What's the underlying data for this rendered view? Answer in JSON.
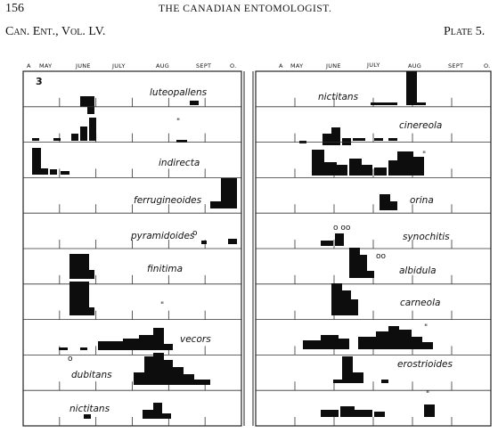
{
  "header": {
    "page_number": "156",
    "journal_title": "THE CANADIAN ENTOMOLOGIST.",
    "citation": "Can. Ent., Vol. LV.",
    "plate": "Plate 5."
  },
  "plate": {
    "figure_number": "3",
    "left_months": [
      "A",
      "MAY",
      "JUNE",
      "JULY",
      "AUG",
      "SEPT",
      "O."
    ],
    "right_months": [
      "A",
      "MAY",
      "JUNE",
      "JULY",
      "AUG",
      "SEPT",
      "O."
    ],
    "left_species": [
      {
        "name": "luteopallens",
        "mark": ""
      },
      {
        "name": "",
        "mark": "\""
      },
      {
        "name": "indirecta",
        "mark": ""
      },
      {
        "name": "ferrugineoides",
        "mark": ""
      },
      {
        "name": "pyramidoides",
        "mark": "o"
      },
      {
        "name": "finitima",
        "mark": ""
      },
      {
        "name": "",
        "mark": "\""
      },
      {
        "name": "vecors",
        "mark": ""
      },
      {
        "name": "dubitans",
        "mark": "o"
      },
      {
        "name": "nictitans",
        "mark": ""
      }
    ],
    "right_species": [
      {
        "name": "nictitans",
        "mark": ""
      },
      {
        "name": "cinereola",
        "mark": ""
      },
      {
        "name": "",
        "mark": "\""
      },
      {
        "name": "orina",
        "mark": ""
      },
      {
        "name": "synochitis",
        "mark": "o oo"
      },
      {
        "name": "albidula",
        "mark": "oo"
      },
      {
        "name": "carneola",
        "mark": ""
      },
      {
        "name": "",
        "mark": "\""
      },
      {
        "name": "erostrioides",
        "mark": ""
      },
      {
        "name": "",
        "mark": "\""
      }
    ]
  }
}
